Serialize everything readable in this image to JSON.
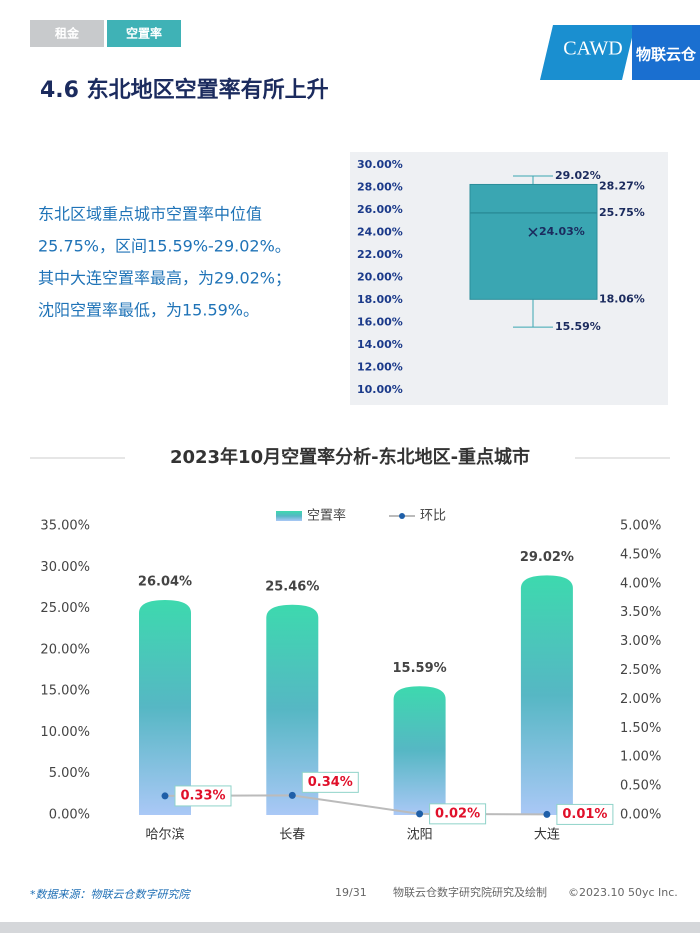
{
  "page": {
    "tabs": [
      "租金",
      "空置率"
    ],
    "logo": [
      "CAWD",
      "物联云仓"
    ],
    "title": "4.6 东北地区空置率有所上升",
    "paragraph": [
      "东北区域重点城市空置率中位值",
      "25.75%，区间15.59%-29.02%。",
      "其中大连空置率最高，为29.02%；",
      "沈阳空置率最低，为15.59%。"
    ],
    "footer": {
      "source": "*数据来源：物联云仓数字研究院",
      "page": "19/31",
      "credit": "物联云仓数字研究院研究及绘制",
      "copyright": "©2023.10 50yc Inc."
    }
  },
  "chart_data": [
    {
      "type": "box",
      "color": "#3aa6b2",
      "ylim": [
        10,
        30
      ],
      "yticks": [
        {
          "value": 10,
          "label": "10.00%"
        },
        {
          "value": 12,
          "label": "12.00%"
        },
        {
          "value": 14,
          "label": "14.00%"
        },
        {
          "value": 16,
          "label": "16.00%"
        },
        {
          "value": 18,
          "label": "18.00%"
        },
        {
          "value": 20,
          "label": "20.00%"
        },
        {
          "value": 22,
          "label": "22.00%"
        },
        {
          "value": 24,
          "label": "24.00%"
        },
        {
          "value": 26,
          "label": "26.00%"
        },
        {
          "value": 28,
          "label": "28.00%"
        },
        {
          "value": 30,
          "label": "30.00%"
        }
      ],
      "min": 15.59,
      "q1": 18.06,
      "median": 25.75,
      "q3": 28.27,
      "max": 29.02,
      "mean": 24.03,
      "value_labels": {
        "min": "15.59%",
        "q1": "18.06%",
        "median": "25.75%",
        "q3": "28.27%",
        "max": "29.02%",
        "mean": "24.03%"
      }
    },
    {
      "type": "bar",
      "title": "2023年10月空置率分析-东北地区-重点城市",
      "legend": "top",
      "categories": [
        "哈尔滨",
        "长春",
        "沈阳",
        "大连"
      ],
      "series": [
        {
          "name": "空置率",
          "type": "bar",
          "color": "#48c2b4",
          "values": [
            26.04,
            25.46,
            15.59,
            29.02
          ],
          "value_labels": [
            "26.04%",
            "25.46%",
            "15.59%",
            "29.02%"
          ]
        },
        {
          "name": "环比",
          "type": "line",
          "axis": "y2",
          "color": "#bbbbbb",
          "values": [
            0.33,
            0.34,
            0.02,
            0.01
          ],
          "value_labels": [
            "0.33%",
            "0.34%",
            "0.02%",
            "0.01%"
          ]
        }
      ],
      "ylim": [
        0,
        35
      ],
      "yticks": [
        {
          "value": 0,
          "label": "0.00%"
        },
        {
          "value": 5,
          "label": "5.00%"
        },
        {
          "value": 10,
          "label": "10.00%"
        },
        {
          "value": 15,
          "label": "15.00%"
        },
        {
          "value": 20,
          "label": "20.00%"
        },
        {
          "value": 25,
          "label": "25.00%"
        },
        {
          "value": 30,
          "label": "30.00%"
        },
        {
          "value": 35,
          "label": "35.00%"
        }
      ],
      "y2lim": [
        0,
        5
      ],
      "y2ticks": [
        {
          "value": 0,
          "label": "0.00%"
        },
        {
          "value": 0.5,
          "label": "0.50%"
        },
        {
          "value": 1,
          "label": "1.00%"
        },
        {
          "value": 1.5,
          "label": "1.50%"
        },
        {
          "value": 2,
          "label": "2.00%"
        },
        {
          "value": 2.5,
          "label": "2.50%"
        },
        {
          "value": 3,
          "label": "3.00%"
        },
        {
          "value": 3.5,
          "label": "3.50%"
        },
        {
          "value": 4,
          "label": "4.00%"
        },
        {
          "value": 4.5,
          "label": "4.50%"
        },
        {
          "value": 5,
          "label": "5.00%"
        }
      ]
    }
  ]
}
